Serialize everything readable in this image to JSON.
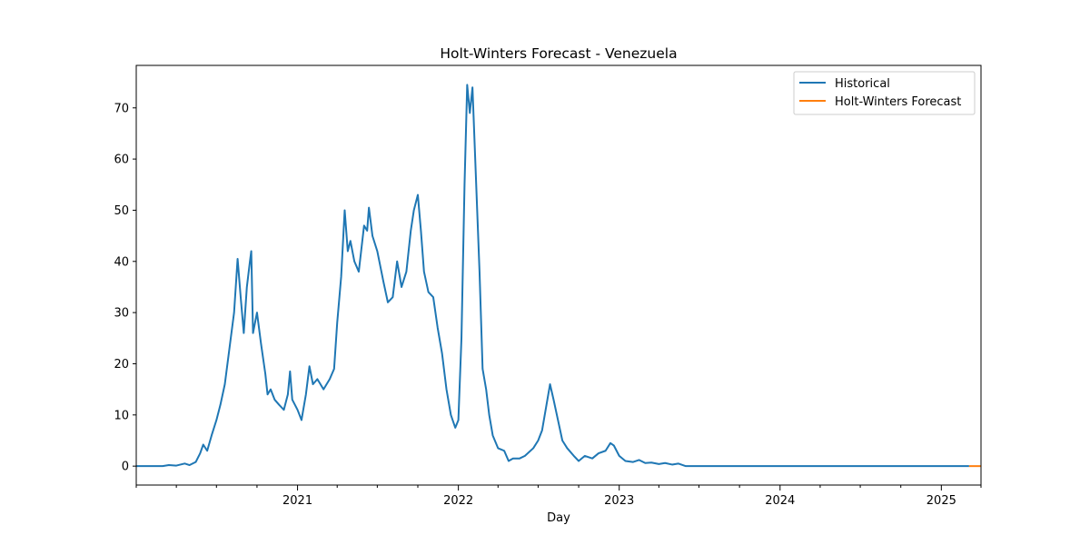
{
  "chart_data": {
    "type": "line",
    "title": "Holt-Winters Forecast - Venezuela",
    "xlabel": "Day",
    "ylabel": "",
    "xlim": [
      "2020-01-01",
      "2025-04-01"
    ],
    "ylim": [
      -3.7,
      78.3
    ],
    "x_ticks": [
      "2021",
      "2022",
      "2023",
      "2024",
      "2025"
    ],
    "y_ticks": [
      0,
      10,
      20,
      30,
      40,
      50,
      60,
      70
    ],
    "grid": false,
    "legend": "top-right",
    "series": [
      {
        "name": "Historical",
        "color": "#1f77b4",
        "points": [
          [
            "2020-01-01",
            0
          ],
          [
            "2020-03-01",
            0
          ],
          [
            "2020-03-15",
            0.2
          ],
          [
            "2020-04-01",
            0.1
          ],
          [
            "2020-04-20",
            0.5
          ],
          [
            "2020-05-01",
            0.2
          ],
          [
            "2020-05-15",
            0.8
          ],
          [
            "2020-05-25",
            2.5
          ],
          [
            "2020-06-01",
            4.2
          ],
          [
            "2020-06-10",
            3
          ],
          [
            "2020-06-20",
            6
          ],
          [
            "2020-07-01",
            9
          ],
          [
            "2020-07-10",
            12
          ],
          [
            "2020-07-20",
            16
          ],
          [
            "2020-08-01",
            24
          ],
          [
            "2020-08-10",
            30
          ],
          [
            "2020-08-18",
            40.5
          ],
          [
            "2020-08-25",
            33
          ],
          [
            "2020-09-01",
            26
          ],
          [
            "2020-09-08",
            35
          ],
          [
            "2020-09-15",
            40
          ],
          [
            "2020-09-18",
            42
          ],
          [
            "2020-09-22",
            26
          ],
          [
            "2020-10-01",
            30
          ],
          [
            "2020-10-10",
            24
          ],
          [
            "2020-10-20",
            18
          ],
          [
            "2020-10-25",
            14
          ],
          [
            "2020-11-01",
            15
          ],
          [
            "2020-11-10",
            13
          ],
          [
            "2020-11-20",
            12
          ],
          [
            "2020-12-01",
            11
          ],
          [
            "2020-12-10",
            14
          ],
          [
            "2020-12-15",
            18.5
          ],
          [
            "2020-12-20",
            13
          ],
          [
            "2021-01-01",
            11
          ],
          [
            "2021-01-10",
            9
          ],
          [
            "2021-01-20",
            14
          ],
          [
            "2021-01-28",
            19.5
          ],
          [
            "2021-02-05",
            16
          ],
          [
            "2021-02-15",
            17
          ],
          [
            "2021-03-01",
            15
          ],
          [
            "2021-03-15",
            17
          ],
          [
            "2021-03-25",
            19
          ],
          [
            "2021-04-01",
            28
          ],
          [
            "2021-04-10",
            37
          ],
          [
            "2021-04-18",
            50
          ],
          [
            "2021-04-25",
            42
          ],
          [
            "2021-05-01",
            44
          ],
          [
            "2021-05-10",
            40
          ],
          [
            "2021-05-20",
            38
          ],
          [
            "2021-06-01",
            47
          ],
          [
            "2021-06-08",
            46
          ],
          [
            "2021-06-12",
            50.5
          ],
          [
            "2021-06-20",
            45
          ],
          [
            "2021-07-01",
            42
          ],
          [
            "2021-07-15",
            36
          ],
          [
            "2021-07-25",
            32
          ],
          [
            "2021-08-05",
            33
          ],
          [
            "2021-08-15",
            40
          ],
          [
            "2021-08-25",
            35
          ],
          [
            "2021-09-05",
            38
          ],
          [
            "2021-09-15",
            46
          ],
          [
            "2021-09-22",
            50
          ],
          [
            "2021-10-01",
            53
          ],
          [
            "2021-10-08",
            46
          ],
          [
            "2021-10-15",
            38
          ],
          [
            "2021-10-25",
            34
          ],
          [
            "2021-11-05",
            33
          ],
          [
            "2021-11-15",
            27
          ],
          [
            "2021-11-25",
            22
          ],
          [
            "2021-12-05",
            15
          ],
          [
            "2021-12-15",
            10
          ],
          [
            "2021-12-25",
            7.5
          ],
          [
            "2022-01-01",
            9
          ],
          [
            "2022-01-08",
            25
          ],
          [
            "2022-01-15",
            55
          ],
          [
            "2022-01-21",
            74.5
          ],
          [
            "2022-01-27",
            69
          ],
          [
            "2022-02-02",
            74
          ],
          [
            "2022-02-10",
            56
          ],
          [
            "2022-02-18",
            38
          ],
          [
            "2022-02-25",
            19
          ],
          [
            "2022-03-05",
            15
          ],
          [
            "2022-03-12",
            10
          ],
          [
            "2022-03-20",
            6
          ],
          [
            "2022-04-01",
            3.5
          ],
          [
            "2022-04-15",
            3
          ],
          [
            "2022-04-25",
            1
          ],
          [
            "2022-05-05",
            1.5
          ],
          [
            "2022-05-20",
            1.5
          ],
          [
            "2022-06-01",
            2
          ],
          [
            "2022-06-20",
            3.5
          ],
          [
            "2022-07-01",
            5
          ],
          [
            "2022-07-10",
            7
          ],
          [
            "2022-07-20",
            12
          ],
          [
            "2022-07-28",
            16
          ],
          [
            "2022-08-05",
            13
          ],
          [
            "2022-08-15",
            9
          ],
          [
            "2022-08-25",
            5
          ],
          [
            "2022-09-05",
            3.5
          ],
          [
            "2022-09-20",
            2
          ],
          [
            "2022-10-01",
            1
          ],
          [
            "2022-10-15",
            2
          ],
          [
            "2022-11-01",
            1.5
          ],
          [
            "2022-11-15",
            2.5
          ],
          [
            "2022-12-01",
            3
          ],
          [
            "2022-12-12",
            4.5
          ],
          [
            "2022-12-20",
            4
          ],
          [
            "2023-01-01",
            2
          ],
          [
            "2023-01-15",
            1
          ],
          [
            "2023-02-01",
            0.8
          ],
          [
            "2023-02-15",
            1.2
          ],
          [
            "2023-03-01",
            0.6
          ],
          [
            "2023-03-15",
            0.7
          ],
          [
            "2023-04-01",
            0.4
          ],
          [
            "2023-04-15",
            0.6
          ],
          [
            "2023-05-01",
            0.3
          ],
          [
            "2023-05-15",
            0.5
          ],
          [
            "2023-06-01",
            0
          ],
          [
            "2025-03-05",
            0
          ]
        ]
      },
      {
        "name": "Holt-Winters Forecast",
        "color": "#ff7f0e",
        "points": [
          [
            "2025-03-05",
            0
          ],
          [
            "2025-04-01",
            0
          ]
        ]
      }
    ]
  }
}
